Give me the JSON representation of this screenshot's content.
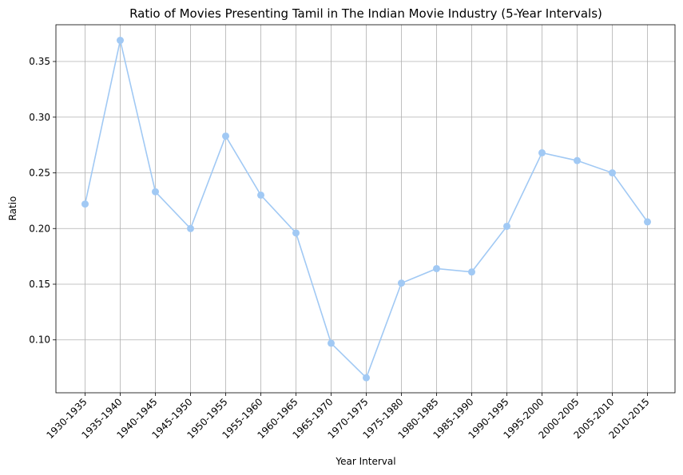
{
  "chart_data": {
    "type": "line",
    "title": "Ratio of Movies Presenting Tamil in The Indian Movie Industry (5-Year Intervals)",
    "xlabel": "Year Interval",
    "ylabel": "Ratio",
    "categories": [
      "1930-1935",
      "1935-1940",
      "1940-1945",
      "1945-1950",
      "1950-1955",
      "1955-1960",
      "1960-1965",
      "1965-1970",
      "1970-1975",
      "1975-1980",
      "1980-1985",
      "1985-1990",
      "1990-1995",
      "1995-2000",
      "2000-2005",
      "2005-2010",
      "2010-2015"
    ],
    "series": [
      {
        "values": [
          0.222,
          0.369,
          0.233,
          0.2,
          0.283,
          0.23,
          0.196,
          0.097,
          0.066,
          0.151,
          0.164,
          0.161,
          0.202,
          0.268,
          0.261,
          0.25,
          0.206
        ]
      }
    ],
    "yticks": [
      0.1,
      0.15,
      0.2,
      0.25,
      0.3,
      0.35
    ],
    "ylim": [
      0.0525,
      0.383
    ],
    "grid": true,
    "line_color": "#a1c9f4",
    "marker": "circle"
  }
}
